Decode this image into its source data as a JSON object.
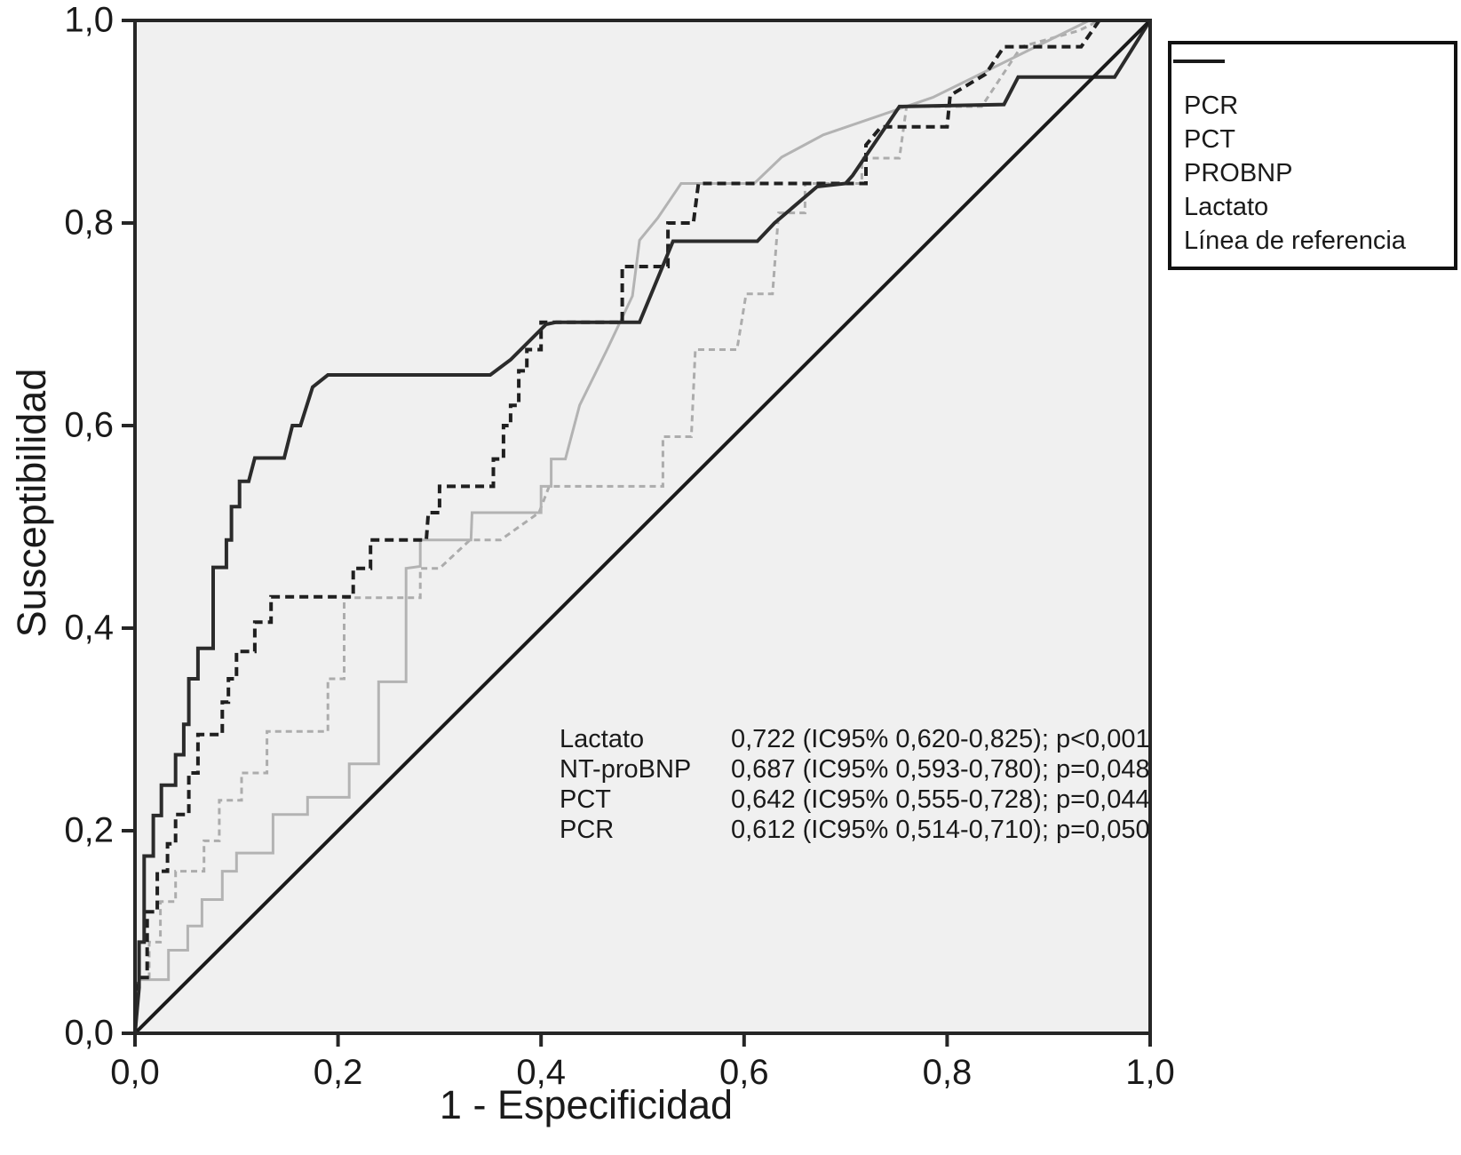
{
  "figure": {
    "background": "#ffffff",
    "plot_background": "#f0f0f0",
    "frame_color": "#262626",
    "text_color": "#1a1a1a"
  },
  "axes": {
    "x_title": "1 - Especificidad",
    "y_title": "Susceptibilidad",
    "x_tick_labels": [
      "0,0",
      "0,2",
      "0,4",
      "0,6",
      "0,8",
      "1,0"
    ],
    "y_tick_labels": [
      "0,0",
      "0,2",
      "0,4",
      "0,6",
      "0,8",
      "1,0"
    ]
  },
  "legend": {
    "items": [
      {
        "id": "pcr",
        "label": "PCR"
      },
      {
        "id": "pct",
        "label": "PCT"
      },
      {
        "id": "probnp",
        "label": "PROBNP"
      },
      {
        "id": "lactato",
        "label": "Lactato"
      },
      {
        "id": "reference",
        "label": "Línea de referencia"
      }
    ]
  },
  "annotation": {
    "rows": [
      {
        "label": "Lactato",
        "value": "0,722 (IC95% 0,620-0,825); p<0,001"
      },
      {
        "label": "NT-proBNP",
        "value": "0,687 (IC95% 0,593-0,780); p=0,048"
      },
      {
        "label": "PCT",
        "value": "0,642 (IC95% 0,555-0,728); p=0,044"
      },
      {
        "label": "PCR",
        "value": "0,612 (IC95% 0,514-0,710); p=0,050"
      }
    ]
  },
  "chart_data": {
    "type": "line",
    "subtype": "roc-curves",
    "title": "",
    "xlabel": "1 - Especificidad",
    "ylabel": "Susceptibilidad",
    "xlim": [
      0,
      1
    ],
    "ylim": [
      0,
      1
    ],
    "x_ticks": [
      0,
      0.2,
      0.4,
      0.6,
      0.8,
      1.0
    ],
    "y_ticks": [
      0,
      0.2,
      0.4,
      0.6,
      0.8,
      1.0
    ],
    "grid": false,
    "legend_position": "top-right",
    "auc_results": [
      {
        "name": "Lactato",
        "auc": 0.722,
        "ci95": [
          0.62,
          0.825
        ],
        "p": "<0,001"
      },
      {
        "name": "NT-proBNP",
        "auc": 0.687,
        "ci95": [
          0.593,
          0.78
        ],
        "p": "=0,048"
      },
      {
        "name": "PCT",
        "auc": 0.642,
        "ci95": [
          0.555,
          0.728
        ],
        "p": "=0,044"
      },
      {
        "name": "PCR",
        "auc": 0.612,
        "ci95": [
          0.514,
          0.71
        ],
        "p": "=0,050"
      }
    ],
    "series": [
      {
        "id": "pcr",
        "name": "PCR",
        "color": "#acacac",
        "dash": "7,5",
        "width": 3,
        "points": [
          [
            0,
            0
          ],
          [
            0.005,
            0.055
          ],
          [
            0.014,
            0.055
          ],
          [
            0.014,
            0.09
          ],
          [
            0.025,
            0.09
          ],
          [
            0.025,
            0.13
          ],
          [
            0.04,
            0.13
          ],
          [
            0.04,
            0.16
          ],
          [
            0.068,
            0.16
          ],
          [
            0.068,
            0.19
          ],
          [
            0.083,
            0.19
          ],
          [
            0.083,
            0.23
          ],
          [
            0.105,
            0.23
          ],
          [
            0.105,
            0.257
          ],
          [
            0.13,
            0.257
          ],
          [
            0.13,
            0.298
          ],
          [
            0.19,
            0.298
          ],
          [
            0.19,
            0.35
          ],
          [
            0.206,
            0.35
          ],
          [
            0.206,
            0.43
          ],
          [
            0.281,
            0.43
          ],
          [
            0.281,
            0.459
          ],
          [
            0.3,
            0.459
          ],
          [
            0.33,
            0.487
          ],
          [
            0.36,
            0.487
          ],
          [
            0.398,
            0.514
          ],
          [
            0.408,
            0.54
          ],
          [
            0.52,
            0.54
          ],
          [
            0.52,
            0.589
          ],
          [
            0.548,
            0.589
          ],
          [
            0.552,
            0.675
          ],
          [
            0.593,
            0.675
          ],
          [
            0.602,
            0.73
          ],
          [
            0.628,
            0.73
          ],
          [
            0.634,
            0.81
          ],
          [
            0.66,
            0.81
          ],
          [
            0.66,
            0.839
          ],
          [
            0.716,
            0.839
          ],
          [
            0.716,
            0.864
          ],
          [
            0.753,
            0.864
          ],
          [
            0.76,
            0.915
          ],
          [
            0.834,
            0.915
          ],
          [
            0.873,
            0.974
          ],
          [
            0.93,
            0.99
          ],
          [
            0.95,
            1
          ],
          [
            1,
            1
          ]
        ]
      },
      {
        "id": "pct",
        "name": "PCT",
        "color": "#b3b3b3",
        "dash": null,
        "width": 3,
        "points": [
          [
            0,
            0
          ],
          [
            0.004,
            0.053
          ],
          [
            0.033,
            0.053
          ],
          [
            0.033,
            0.082
          ],
          [
            0.052,
            0.082
          ],
          [
            0.052,
            0.106
          ],
          [
            0.066,
            0.106
          ],
          [
            0.066,
            0.132
          ],
          [
            0.086,
            0.132
          ],
          [
            0.086,
            0.16
          ],
          [
            0.1,
            0.16
          ],
          [
            0.1,
            0.178
          ],
          [
            0.136,
            0.178
          ],
          [
            0.136,
            0.216
          ],
          [
            0.17,
            0.216
          ],
          [
            0.17,
            0.233
          ],
          [
            0.211,
            0.233
          ],
          [
            0.211,
            0.266
          ],
          [
            0.24,
            0.266
          ],
          [
            0.24,
            0.347
          ],
          [
            0.267,
            0.347
          ],
          [
            0.267,
            0.459
          ],
          [
            0.281,
            0.461
          ],
          [
            0.281,
            0.487
          ],
          [
            0.331,
            0.487
          ],
          [
            0.332,
            0.514
          ],
          [
            0.4,
            0.514
          ],
          [
            0.4,
            0.54
          ],
          [
            0.41,
            0.54
          ],
          [
            0.41,
            0.567
          ],
          [
            0.424,
            0.567
          ],
          [
            0.438,
            0.62
          ],
          [
            0.465,
            0.675
          ],
          [
            0.49,
            0.728
          ],
          [
            0.497,
            0.783
          ],
          [
            0.515,
            0.805
          ],
          [
            0.538,
            0.839
          ],
          [
            0.61,
            0.839
          ],
          [
            0.637,
            0.865
          ],
          [
            0.678,
            0.887
          ],
          [
            0.786,
            0.924
          ],
          [
            0.94,
            1
          ],
          [
            1,
            1
          ]
        ]
      },
      {
        "id": "probnp",
        "name": "PROBNP",
        "color": "#1f1f1f",
        "dash": "10,6",
        "width": 4,
        "points": [
          [
            0,
            0
          ],
          [
            0.004,
            0.055
          ],
          [
            0.012,
            0.055
          ],
          [
            0.012,
            0.12
          ],
          [
            0.022,
            0.12
          ],
          [
            0.022,
            0.16
          ],
          [
            0.032,
            0.16
          ],
          [
            0.032,
            0.187
          ],
          [
            0.04,
            0.187
          ],
          [
            0.04,
            0.216
          ],
          [
            0.053,
            0.216
          ],
          [
            0.053,
            0.257
          ],
          [
            0.062,
            0.257
          ],
          [
            0.062,
            0.295
          ],
          [
            0.086,
            0.295
          ],
          [
            0.086,
            0.327
          ],
          [
            0.092,
            0.327
          ],
          [
            0.092,
            0.35
          ],
          [
            0.1,
            0.35
          ],
          [
            0.1,
            0.377
          ],
          [
            0.118,
            0.377
          ],
          [
            0.118,
            0.406
          ],
          [
            0.134,
            0.406
          ],
          [
            0.134,
            0.431
          ],
          [
            0.215,
            0.431
          ],
          [
            0.215,
            0.459
          ],
          [
            0.232,
            0.459
          ],
          [
            0.232,
            0.487
          ],
          [
            0.287,
            0.487
          ],
          [
            0.289,
            0.514
          ],
          [
            0.3,
            0.514
          ],
          [
            0.3,
            0.54
          ],
          [
            0.353,
            0.54
          ],
          [
            0.353,
            0.567
          ],
          [
            0.363,
            0.567
          ],
          [
            0.363,
            0.6
          ],
          [
            0.37,
            0.6
          ],
          [
            0.37,
            0.62
          ],
          [
            0.378,
            0.62
          ],
          [
            0.378,
            0.654
          ],
          [
            0.386,
            0.654
          ],
          [
            0.386,
            0.675
          ],
          [
            0.4,
            0.675
          ],
          [
            0.4,
            0.702
          ],
          [
            0.48,
            0.702
          ],
          [
            0.48,
            0.757
          ],
          [
            0.525,
            0.757
          ],
          [
            0.525,
            0.8
          ],
          [
            0.55,
            0.8
          ],
          [
            0.555,
            0.839
          ],
          [
            0.72,
            0.839
          ],
          [
            0.72,
            0.877
          ],
          [
            0.735,
            0.895
          ],
          [
            0.8,
            0.895
          ],
          [
            0.803,
            0.926
          ],
          [
            0.838,
            0.947
          ],
          [
            0.856,
            0.974
          ],
          [
            0.932,
            0.974
          ],
          [
            0.95,
            1
          ],
          [
            1,
            1
          ]
        ]
      },
      {
        "id": "lactato",
        "name": "Lactato",
        "color": "#2b2b2b",
        "dash": null,
        "width": 4,
        "points": [
          [
            0,
            0
          ],
          [
            0.004,
            0.045
          ],
          [
            0.004,
            0.09
          ],
          [
            0.009,
            0.09
          ],
          [
            0.009,
            0.175
          ],
          [
            0.018,
            0.175
          ],
          [
            0.018,
            0.215
          ],
          [
            0.026,
            0.215
          ],
          [
            0.026,
            0.245
          ],
          [
            0.04,
            0.245
          ],
          [
            0.04,
            0.275
          ],
          [
            0.048,
            0.275
          ],
          [
            0.048,
            0.305
          ],
          [
            0.053,
            0.305
          ],
          [
            0.053,
            0.35
          ],
          [
            0.062,
            0.35
          ],
          [
            0.062,
            0.38
          ],
          [
            0.077,
            0.38
          ],
          [
            0.077,
            0.46
          ],
          [
            0.09,
            0.46
          ],
          [
            0.09,
            0.487
          ],
          [
            0.095,
            0.487
          ],
          [
            0.095,
            0.52
          ],
          [
            0.103,
            0.52
          ],
          [
            0.103,
            0.545
          ],
          [
            0.112,
            0.545
          ],
          [
            0.118,
            0.568
          ],
          [
            0.147,
            0.568
          ],
          [
            0.155,
            0.6
          ],
          [
            0.163,
            0.6
          ],
          [
            0.175,
            0.638
          ],
          [
            0.19,
            0.65
          ],
          [
            0.35,
            0.65
          ],
          [
            0.37,
            0.665
          ],
          [
            0.405,
            0.7
          ],
          [
            0.415,
            0.702
          ],
          [
            0.497,
            0.702
          ],
          [
            0.53,
            0.782
          ],
          [
            0.613,
            0.782
          ],
          [
            0.63,
            0.8
          ],
          [
            0.672,
            0.836
          ],
          [
            0.7,
            0.839
          ],
          [
            0.707,
            0.847
          ],
          [
            0.753,
            0.915
          ],
          [
            0.856,
            0.917
          ],
          [
            0.87,
            0.944
          ],
          [
            0.965,
            0.944
          ],
          [
            1,
            1
          ]
        ]
      },
      {
        "id": "reference",
        "name": "Línea de referencia",
        "color": "#1a1a1a",
        "dash": null,
        "width": 4,
        "points": [
          [
            0,
            0
          ],
          [
            1,
            1
          ]
        ]
      }
    ]
  }
}
